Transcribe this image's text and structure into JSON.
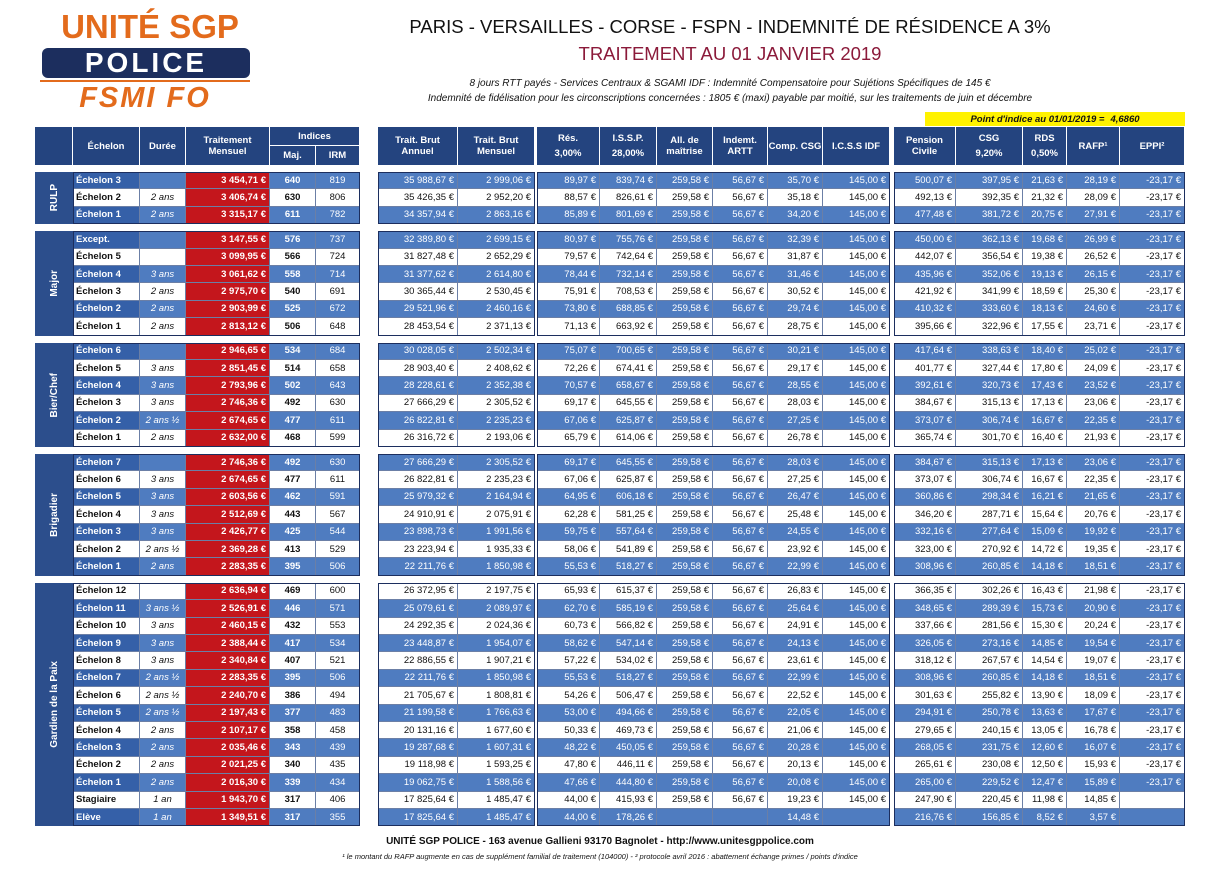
{
  "logo": {
    "line1": "UNITÉ SGP",
    "line2": "POLICE",
    "line3": "FSMI FO"
  },
  "header": {
    "title": "PARIS - VERSAILLES - CORSE - FSPN - INDEMNITÉ DE RÉSIDENCE A 3%",
    "subtitle": "TRAITEMENT AU 01 JANVIER 2019",
    "notes": [
      "8 jours RTT payés - Services Centraux & SGAMI IDF : Indemnité Compensatoire pour Sujétions Spécifiques de 145 €",
      "Indemnité de fidélisation pour les circonscriptions concernées : 1805 € (maxi) payable par moitié, sur les traitements de juin et décembre"
    ]
  },
  "point_indice": {
    "label": "Point d'indice au 01/01/2019 =",
    "value": "4,6860"
  },
  "table": {
    "indices_header": "Indices",
    "columns": [
      {
        "label": "Échelon"
      },
      {
        "label": "Durée"
      },
      {
        "label": "Traitement Mensuel"
      },
      {
        "label": "Maj."
      },
      {
        "label": "IRM"
      },
      {
        "label": "Trait. Brut Annuel"
      },
      {
        "label": "Trait. Brut Mensuel"
      },
      {
        "label": "Rés.",
        "sub": "3,00%"
      },
      {
        "label": "I.S.S.P.",
        "sub": "28,00%"
      },
      {
        "label": "All. de maîtrise"
      },
      {
        "label": "Indemt. ARTT"
      },
      {
        "label": "Comp. CSG"
      },
      {
        "label": "I.C.S.S IDF"
      },
      {
        "label": "Pension Civile"
      },
      {
        "label": "CSG",
        "sub": "9,20%"
      },
      {
        "label": "RDS",
        "sub": "0,50%"
      },
      {
        "label": "RAFP¹"
      },
      {
        "label": "EPPI²"
      }
    ],
    "groups": [
      {
        "name": "RULP",
        "rows": [
          [
            "Échelon 3",
            null,
            "3 454,71 €",
            "640",
            "819",
            "35 988,67 €",
            "2 999,06 €",
            "89,97 €",
            "839,74 €",
            "259,58 €",
            "56,67 €",
            "35,70 €",
            "145,00 €",
            "500,07 €",
            "397,95 €",
            "21,63 €",
            "28,19 €",
            "-23,17 €"
          ],
          [
            "Échelon 2",
            "2 ans",
            "3 406,74 €",
            "630",
            "806",
            "35 426,35 €",
            "2 952,20 €",
            "88,57 €",
            "826,61 €",
            "259,58 €",
            "56,67 €",
            "35,18 €",
            "145,00 €",
            "492,13 €",
            "392,35 €",
            "21,32 €",
            "28,09 €",
            "-23,17 €"
          ],
          [
            "Échelon 1",
            "2 ans",
            "3 315,17 €",
            "611",
            "782",
            "34 357,94 €",
            "2 863,16 €",
            "85,89 €",
            "801,69 €",
            "259,58 €",
            "56,67 €",
            "34,20 €",
            "145,00 €",
            "477,48 €",
            "381,72 €",
            "20,75 €",
            "27,91 €",
            "-23,17 €"
          ]
        ]
      },
      {
        "name": "Major",
        "rows": [
          [
            "Except.",
            null,
            "3 147,55 €",
            "576",
            "737",
            "32 389,80 €",
            "2 699,15 €",
            "80,97 €",
            "755,76 €",
            "259,58 €",
            "56,67 €",
            "32,39 €",
            "145,00 €",
            "450,00 €",
            "362,13 €",
            "19,68 €",
            "26,99 €",
            "-23,17 €"
          ],
          [
            "Échelon 5",
            null,
            "3 099,95 €",
            "566",
            "724",
            "31 827,48 €",
            "2 652,29 €",
            "79,57 €",
            "742,64 €",
            "259,58 €",
            "56,67 €",
            "31,87 €",
            "145,00 €",
            "442,07 €",
            "356,54 €",
            "19,38 €",
            "26,52 €",
            "-23,17 €"
          ],
          [
            "Échelon 4",
            "3 ans",
            "3 061,62 €",
            "558",
            "714",
            "31 377,62 €",
            "2 614,80 €",
            "78,44 €",
            "732,14 €",
            "259,58 €",
            "56,67 €",
            "31,46 €",
            "145,00 €",
            "435,96 €",
            "352,06 €",
            "19,13 €",
            "26,15 €",
            "-23,17 €"
          ],
          [
            "Échelon 3",
            "2 ans",
            "2 975,70 €",
            "540",
            "691",
            "30 365,44 €",
            "2 530,45 €",
            "75,91 €",
            "708,53 €",
            "259,58 €",
            "56,67 €",
            "30,52 €",
            "145,00 €",
            "421,92 €",
            "341,99 €",
            "18,59 €",
            "25,30 €",
            "-23,17 €"
          ],
          [
            "Échelon 2",
            "2 ans",
            "2 903,99 €",
            "525",
            "672",
            "29 521,96 €",
            "2 460,16 €",
            "73,80 €",
            "688,85 €",
            "259,58 €",
            "56,67 €",
            "29,74 €",
            "145,00 €",
            "410,32 €",
            "333,60 €",
            "18,13 €",
            "24,60 €",
            "-23,17 €"
          ],
          [
            "Échelon 1",
            "2 ans",
            "2 813,12 €",
            "506",
            "648",
            "28 453,54 €",
            "2 371,13 €",
            "71,13 €",
            "663,92 €",
            "259,58 €",
            "56,67 €",
            "28,75 €",
            "145,00 €",
            "395,66 €",
            "322,96 €",
            "17,55 €",
            "23,71 €",
            "-23,17 €"
          ]
        ]
      },
      {
        "name": "Bier/Chef",
        "rows": [
          [
            "Échelon 6",
            null,
            "2 946,65 €",
            "534",
            "684",
            "30 028,05 €",
            "2 502,34 €",
            "75,07 €",
            "700,65 €",
            "259,58 €",
            "56,67 €",
            "30,21 €",
            "145,00 €",
            "417,64 €",
            "338,63 €",
            "18,40 €",
            "25,02 €",
            "-23,17 €"
          ],
          [
            "Échelon 5",
            "3 ans",
            "2 851,45 €",
            "514",
            "658",
            "28 903,40 €",
            "2 408,62 €",
            "72,26 €",
            "674,41 €",
            "259,58 €",
            "56,67 €",
            "29,17 €",
            "145,00 €",
            "401,77 €",
            "327,44 €",
            "17,80 €",
            "24,09 €",
            "-23,17 €"
          ],
          [
            "Échelon 4",
            "3 ans",
            "2 793,96 €",
            "502",
            "643",
            "28 228,61 €",
            "2 352,38 €",
            "70,57 €",
            "658,67 €",
            "259,58 €",
            "56,67 €",
            "28,55 €",
            "145,00 €",
            "392,61 €",
            "320,73 €",
            "17,43 €",
            "23,52 €",
            "-23,17 €"
          ],
          [
            "Échelon 3",
            "3 ans",
            "2 746,36 €",
            "492",
            "630",
            "27 666,29 €",
            "2 305,52 €",
            "69,17 €",
            "645,55 €",
            "259,58 €",
            "56,67 €",
            "28,03 €",
            "145,00 €",
            "384,67 €",
            "315,13 €",
            "17,13 €",
            "23,06 €",
            "-23,17 €"
          ],
          [
            "Échelon 2",
            "2 ans ½",
            "2 674,65 €",
            "477",
            "611",
            "26 822,81 €",
            "2 235,23 €",
            "67,06 €",
            "625,87 €",
            "259,58 €",
            "56,67 €",
            "27,25 €",
            "145,00 €",
            "373,07 €",
            "306,74 €",
            "16,67 €",
            "22,35 €",
            "-23,17 €"
          ],
          [
            "Échelon 1",
            "2 ans",
            "2 632,00 €",
            "468",
            "599",
            "26 316,72 €",
            "2 193,06 €",
            "65,79 €",
            "614,06 €",
            "259,58 €",
            "56,67 €",
            "26,78 €",
            "145,00 €",
            "365,74 €",
            "301,70 €",
            "16,40 €",
            "21,93 €",
            "-23,17 €"
          ]
        ]
      },
      {
        "name": "Brigadier",
        "rows": [
          [
            "Échelon 7",
            null,
            "2 746,36 €",
            "492",
            "630",
            "27 666,29 €",
            "2 305,52 €",
            "69,17 €",
            "645,55 €",
            "259,58 €",
            "56,67 €",
            "28,03 €",
            "145,00 €",
            "384,67 €",
            "315,13 €",
            "17,13 €",
            "23,06 €",
            "-23,17 €"
          ],
          [
            "Échelon 6",
            "3 ans",
            "2 674,65 €",
            "477",
            "611",
            "26 822,81 €",
            "2 235,23 €",
            "67,06 €",
            "625,87 €",
            "259,58 €",
            "56,67 €",
            "27,25 €",
            "145,00 €",
            "373,07 €",
            "306,74 €",
            "16,67 €",
            "22,35 €",
            "-23,17 €"
          ],
          [
            "Échelon 5",
            "3 ans",
            "2 603,56 €",
            "462",
            "591",
            "25 979,32 €",
            "2 164,94 €",
            "64,95 €",
            "606,18 €",
            "259,58 €",
            "56,67 €",
            "26,47 €",
            "145,00 €",
            "360,86 €",
            "298,34 €",
            "16,21 €",
            "21,65 €",
            "-23,17 €"
          ],
          [
            "Échelon 4",
            "3 ans",
            "2 512,69 €",
            "443",
            "567",
            "24 910,91 €",
            "2 075,91 €",
            "62,28 €",
            "581,25 €",
            "259,58 €",
            "56,67 €",
            "25,48 €",
            "145,00 €",
            "346,20 €",
            "287,71 €",
            "15,64 €",
            "20,76 €",
            "-23,17 €"
          ],
          [
            "Échelon 3",
            "3 ans",
            "2 426,77 €",
            "425",
            "544",
            "23 898,73 €",
            "1 991,56 €",
            "59,75 €",
            "557,64 €",
            "259,58 €",
            "56,67 €",
            "24,55 €",
            "145,00 €",
            "332,16 €",
            "277,64 €",
            "15,09 €",
            "19,92 €",
            "-23,17 €"
          ],
          [
            "Échelon 2",
            "2 ans ½",
            "2 369,28 €",
            "413",
            "529",
            "23 223,94 €",
            "1 935,33 €",
            "58,06 €",
            "541,89 €",
            "259,58 €",
            "56,67 €",
            "23,92 €",
            "145,00 €",
            "323,00 €",
            "270,92 €",
            "14,72 €",
            "19,35 €",
            "-23,17 €"
          ],
          [
            "Échelon 1",
            "2 ans",
            "2 283,35 €",
            "395",
            "506",
            "22 211,76 €",
            "1 850,98 €",
            "55,53 €",
            "518,27 €",
            "259,58 €",
            "56,67 €",
            "22,99 €",
            "145,00 €",
            "308,96 €",
            "260,85 €",
            "14,18 €",
            "18,51 €",
            "-23,17 €"
          ]
        ]
      },
      {
        "name": "Gardien de la Paix",
        "rows": [
          [
            "Échelon 12",
            null,
            "2 636,94 €",
            "469",
            "600",
            "26 372,95 €",
            "2 197,75 €",
            "65,93 €",
            "615,37 €",
            "259,58 €",
            "56,67 €",
            "26,83 €",
            "145,00 €",
            "366,35 €",
            "302,26 €",
            "16,43 €",
            "21,98 €",
            "-23,17 €"
          ],
          [
            "Échelon 11",
            "3 ans ½",
            "2 526,91 €",
            "446",
            "571",
            "25 079,61 €",
            "2 089,97 €",
            "62,70 €",
            "585,19 €",
            "259,58 €",
            "56,67 €",
            "25,64 €",
            "145,00 €",
            "348,65 €",
            "289,39 €",
            "15,73 €",
            "20,90 €",
            "-23,17 €"
          ],
          [
            "Échelon 10",
            "3 ans",
            "2 460,15 €",
            "432",
            "553",
            "24 292,35 €",
            "2 024,36 €",
            "60,73 €",
            "566,82 €",
            "259,58 €",
            "56,67 €",
            "24,91 €",
            "145,00 €",
            "337,66 €",
            "281,56 €",
            "15,30 €",
            "20,24 €",
            "-23,17 €"
          ],
          [
            "Échelon 9",
            "3 ans",
            "2 388,44 €",
            "417",
            "534",
            "23 448,87 €",
            "1 954,07 €",
            "58,62 €",
            "547,14 €",
            "259,58 €",
            "56,67 €",
            "24,13 €",
            "145,00 €",
            "326,05 €",
            "273,16 €",
            "14,85 €",
            "19,54 €",
            "-23,17 €"
          ],
          [
            "Échelon 8",
            "3 ans",
            "2 340,84 €",
            "407",
            "521",
            "22 886,55 €",
            "1 907,21 €",
            "57,22 €",
            "534,02 €",
            "259,58 €",
            "56,67 €",
            "23,61 €",
            "145,00 €",
            "318,12 €",
            "267,57 €",
            "14,54 €",
            "19,07 €",
            "-23,17 €"
          ],
          [
            "Échelon 7",
            "2 ans ½",
            "2 283,35 €",
            "395",
            "506",
            "22 211,76 €",
            "1 850,98 €",
            "55,53 €",
            "518,27 €",
            "259,58 €",
            "56,67 €",
            "22,99 €",
            "145,00 €",
            "308,96 €",
            "260,85 €",
            "14,18 €",
            "18,51 €",
            "-23,17 €"
          ],
          [
            "Échelon 6",
            "2 ans ½",
            "2 240,70 €",
            "386",
            "494",
            "21 705,67 €",
            "1 808,81 €",
            "54,26 €",
            "506,47 €",
            "259,58 €",
            "56,67 €",
            "22,52 €",
            "145,00 €",
            "301,63 €",
            "255,82 €",
            "13,90 €",
            "18,09 €",
            "-23,17 €"
          ],
          [
            "Échelon 5",
            "2 ans ½",
            "2 197,43 €",
            "377",
            "483",
            "21 199,58 €",
            "1 766,63 €",
            "53,00 €",
            "494,66 €",
            "259,58 €",
            "56,67 €",
            "22,05 €",
            "145,00 €",
            "294,91 €",
            "250,78 €",
            "13,63 €",
            "17,67 €",
            "-23,17 €"
          ],
          [
            "Échelon 4",
            "2 ans",
            "2 107,17 €",
            "358",
            "458",
            "20 131,16 €",
            "1 677,60 €",
            "50,33 €",
            "469,73 €",
            "259,58 €",
            "56,67 €",
            "21,06 €",
            "145,00 €",
            "279,65 €",
            "240,15 €",
            "13,05 €",
            "16,78 €",
            "-23,17 €"
          ],
          [
            "Échelon 3",
            "2 ans",
            "2 035,46 €",
            "343",
            "439",
            "19 287,68 €",
            "1 607,31 €",
            "48,22 €",
            "450,05 €",
            "259,58 €",
            "56,67 €",
            "20,28 €",
            "145,00 €",
            "268,05 €",
            "231,75 €",
            "12,60 €",
            "16,07 €",
            "-23,17 €"
          ],
          [
            "Échelon 2",
            "2 ans",
            "2 021,25 €",
            "340",
            "435",
            "19 118,98 €",
            "1 593,25 €",
            "47,80 €",
            "446,11 €",
            "259,58 €",
            "56,67 €",
            "20,13 €",
            "145,00 €",
            "265,61 €",
            "230,08 €",
            "12,50 €",
            "15,93 €",
            "-23,17 €"
          ],
          [
            "Échelon 1",
            "2 ans",
            "2 016,30 €",
            "339",
            "434",
            "19 062,75 €",
            "1 588,56 €",
            "47,66 €",
            "444,80 €",
            "259,58 €",
            "56,67 €",
            "20,08 €",
            "145,00 €",
            "265,00 €",
            "229,52 €",
            "12,47 €",
            "15,89 €",
            "-23,17 €"
          ],
          [
            "Stagiaire",
            "1 an",
            "1 943,70 €",
            "317",
            "406",
            "17 825,64 €",
            "1 485,47 €",
            "44,00 €",
            "415,93 €",
            "259,58 €",
            "56,67 €",
            "19,23 €",
            "145,00 €",
            "247,90 €",
            "220,45 €",
            "11,98 €",
            "14,85 €",
            null
          ],
          [
            "Elève",
            "1 an",
            "1 349,51 €",
            "317",
            "355",
            "17 825,64 €",
            "1 485,47 €",
            "44,00 €",
            "178,26 €",
            null,
            null,
            "14,48 €",
            null,
            "216,76 €",
            "156,85 €",
            "8,52 €",
            "3,57 €",
            null
          ]
        ]
      }
    ]
  },
  "footer": {
    "address": "UNITÉ SGP POLICE - 163 avenue Gallieni 93170 Bagnolet - http://www.unitesgppolice.com",
    "footnote": "¹ le montant du RAFP augmente en cas de supplément familial de traitement (104000) - ² protocole avril 2016 : abattement échange primes / points d'indice"
  }
}
